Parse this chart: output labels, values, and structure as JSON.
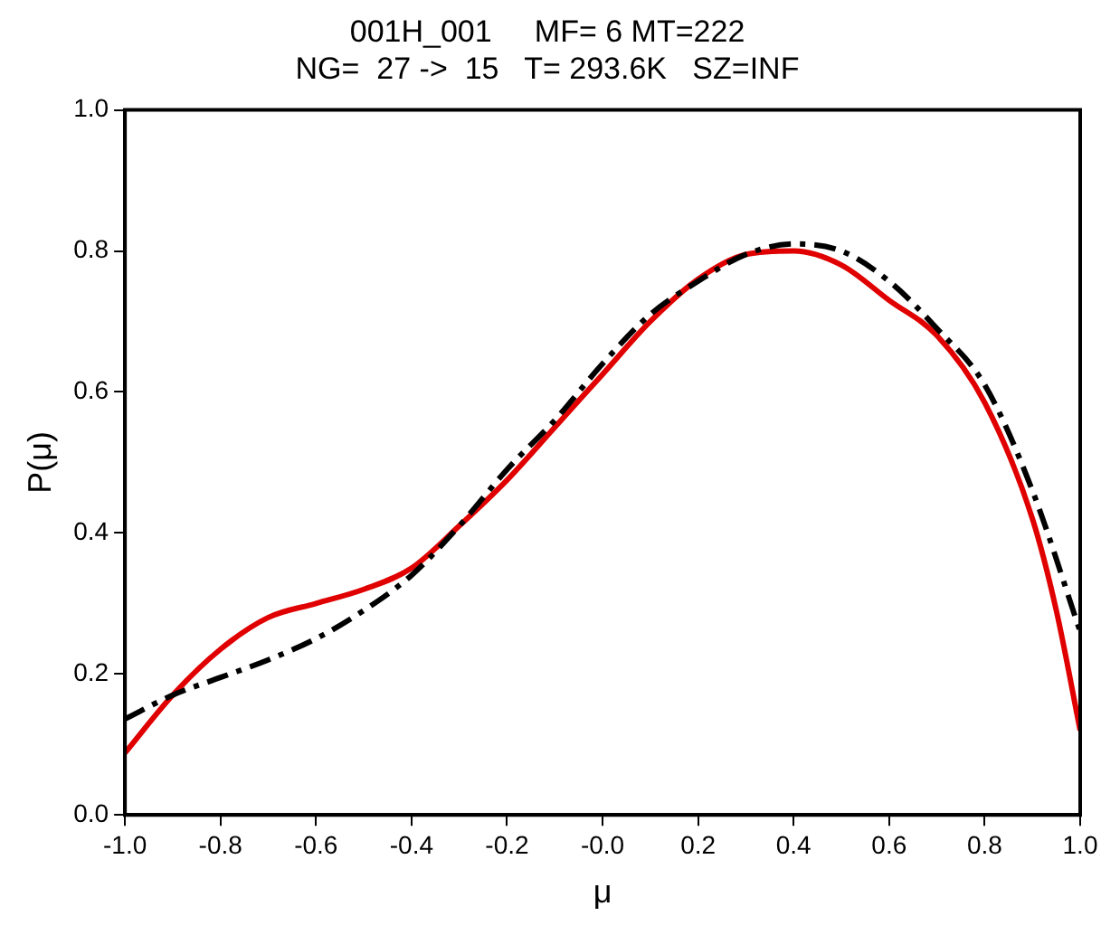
{
  "chart_data": {
    "type": "line",
    "title": [
      "001H_001     MF= 6 MT=222",
      "NG=  27 ->  15   T= 293.6K   SZ=INF"
    ],
    "xlabel": "μ",
    "ylabel": "P(μ)",
    "xlim": [
      -1,
      1
    ],
    "xticks": [
      {
        "value": -1,
        "label": "-1.0"
      },
      {
        "value": -0.8,
        "label": "-0.8"
      },
      {
        "value": -0.6,
        "label": "-0.6"
      },
      {
        "value": -0.4,
        "label": "-0.4"
      },
      {
        "value": -0.2,
        "label": "-0.2"
      },
      {
        "value": 0,
        "label": "-0.0"
      },
      {
        "value": 0.2,
        "label": "0.2"
      },
      {
        "value": 0.4,
        "label": "0.4"
      },
      {
        "value": 0.6,
        "label": "0.6"
      },
      {
        "value": 0.8,
        "label": "0.8"
      },
      {
        "value": 1,
        "label": "1.0"
      }
    ],
    "ylim": [
      0,
      1
    ],
    "yticks": [
      {
        "value": 0,
        "label": "0.0"
      },
      {
        "value": 0.2,
        "label": "0.2"
      },
      {
        "value": 0.4,
        "label": "0.4"
      },
      {
        "value": 0.6,
        "label": "0.6"
      },
      {
        "value": 0.8,
        "label": "0.8"
      },
      {
        "value": 1,
        "label": "1.0"
      }
    ],
    "grid": false,
    "legend": false,
    "marker": "none",
    "series": [
      {
        "color": "#000000",
        "line_style": "dashed",
        "x": [
          -1,
          -0.9,
          -0.8,
          -0.7,
          -0.6,
          -0.5,
          -0.4,
          -0.3,
          -0.2,
          -0.1,
          0,
          0.1,
          0.2,
          0.3,
          0.4,
          0.5,
          0.6,
          0.7,
          0.8,
          0.9,
          1
        ],
        "values": [
          0.136,
          0.17,
          0.195,
          0.22,
          0.25,
          0.29,
          0.34,
          0.41,
          0.49,
          0.56,
          0.64,
          0.71,
          0.757,
          0.795,
          0.81,
          0.8,
          0.757,
          0.69,
          0.61,
          0.46,
          0.26
        ]
      },
      {
        "color": "#e00000",
        "line_style": "solid",
        "x": [
          -1,
          -0.9,
          -0.8,
          -0.7,
          -0.6,
          -0.5,
          -0.4,
          -0.3,
          -0.2,
          -0.1,
          0,
          0.1,
          0.2,
          0.3,
          0.4,
          0.5,
          0.6,
          0.7,
          0.8,
          0.9,
          0.95,
          1
        ],
        "values": [
          0.088,
          0.17,
          0.235,
          0.28,
          0.3,
          0.32,
          0.35,
          0.41,
          0.475,
          0.55,
          0.625,
          0.7,
          0.76,
          0.795,
          0.8,
          0.78,
          0.73,
          0.68,
          0.585,
          0.42,
          0.29,
          0.12
        ]
      }
    ]
  }
}
